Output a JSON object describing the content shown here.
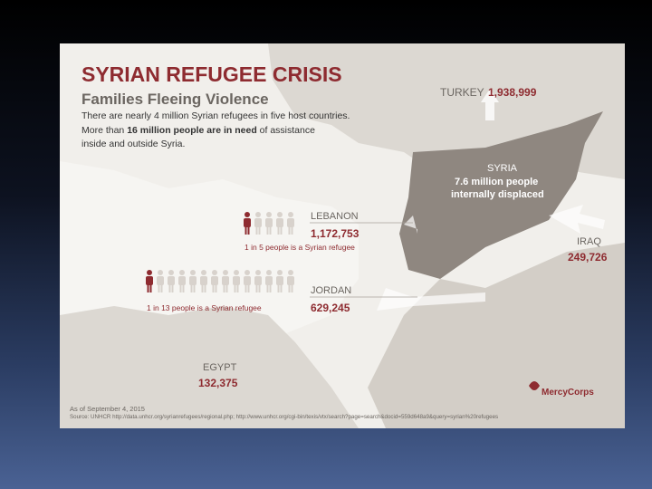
{
  "header": {
    "title": "SYRIAN REFUGEE CRISIS",
    "subtitle": "Families Fleeing Violence"
  },
  "intro": {
    "line1": "There are nearly 4 million Syrian refugees in five host countries.",
    "line2": {
      "before": "More than ",
      "bold": "16 million people are in need",
      "after": " of assistance"
    },
    "line3": "inside and outside Syria."
  },
  "countries": {
    "turkey": {
      "name": "TURKEY",
      "value": "1,938,999"
    },
    "syria": {
      "name": "SYRIA",
      "line1": "7.6 million people",
      "line2": "internally displaced"
    },
    "lebanon": {
      "name": "LEBANON",
      "value": "1,172,753",
      "note": "1 in 5 people is a Syrian refugee"
    },
    "iraq": {
      "name": "IRAQ",
      "value": "249,726"
    },
    "jordan": {
      "name": "JORDAN",
      "value": "629,245",
      "note": "1 in 13 people is a Syrian refugee"
    },
    "egypt": {
      "name": "EGYPT",
      "value": "132,375"
    }
  },
  "footer": {
    "date": "As of September 4, 2015",
    "source": "Source: UNHCR http://data.unhcr.org/syrianrefugees/regional.php; http://www.unhcr.org/cgi-bin/texis/vtx/search?page=search&docid=559d648a9&query=syrian%20refugees",
    "logo": "MercyCorps"
  }
}
